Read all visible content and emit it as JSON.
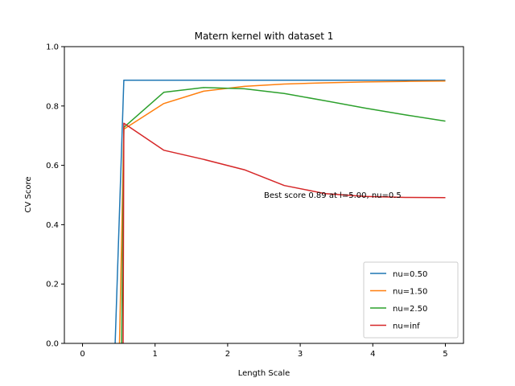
{
  "chart_data": {
    "type": "line",
    "title": "Matern kernel with dataset 1",
    "xlabel": "Length Scale",
    "ylabel": "CV Score",
    "xlim": [
      -0.25,
      5.25
    ],
    "ylim": [
      0.0,
      1.0
    ],
    "xticks": [
      0,
      1,
      2,
      3,
      4,
      5
    ],
    "xtick_labels": [
      "0",
      "1",
      "2",
      "3",
      "4",
      "5"
    ],
    "yticks": [
      0.0,
      0.2,
      0.4,
      0.6,
      0.8,
      1.0
    ],
    "ytick_labels": [
      "0.0",
      "0.2",
      "0.4",
      "0.6",
      "0.8",
      "1.0"
    ],
    "grid": false,
    "legend_position": "lower-right",
    "annotation": {
      "text": "Best score 0.89 at l=5.00, nu=0.5",
      "x": 2.5,
      "y": 0.5
    },
    "series": [
      {
        "name": "nu=0.50",
        "color": "#1f77b4",
        "x": [
          0.45,
          0.57,
          1.12,
          1.67,
          2.23,
          2.78,
          3.34,
          3.89,
          4.45,
          5.0
        ],
        "y": [
          0.0,
          0.887,
          0.887,
          0.887,
          0.887,
          0.887,
          0.887,
          0.887,
          0.887,
          0.887
        ]
      },
      {
        "name": "nu=1.50",
        "color": "#ff7f0e",
        "x": [
          0.51,
          0.57,
          1.12,
          1.67,
          2.23,
          2.78,
          3.34,
          3.89,
          4.45,
          5.0
        ],
        "y": [
          0.0,
          0.722,
          0.808,
          0.85,
          0.866,
          0.874,
          0.878,
          0.881,
          0.883,
          0.884
        ]
      },
      {
        "name": "nu=2.50",
        "color": "#2ca02c",
        "x": [
          0.54,
          0.57,
          1.12,
          1.67,
          2.23,
          2.78,
          3.34,
          3.89,
          4.45,
          5.0
        ],
        "y": [
          0.0,
          0.728,
          0.846,
          0.862,
          0.858,
          0.842,
          0.818,
          0.793,
          0.77,
          0.749
        ]
      },
      {
        "name": "nu=inf",
        "color": "#d62728",
        "x": [
          0.56,
          0.57,
          1.12,
          1.67,
          2.23,
          2.78,
          3.34,
          3.89,
          4.45,
          5.0
        ],
        "y": [
          0.0,
          0.742,
          0.651,
          0.62,
          0.585,
          0.532,
          0.505,
          0.495,
          0.492,
          0.491
        ]
      }
    ]
  }
}
